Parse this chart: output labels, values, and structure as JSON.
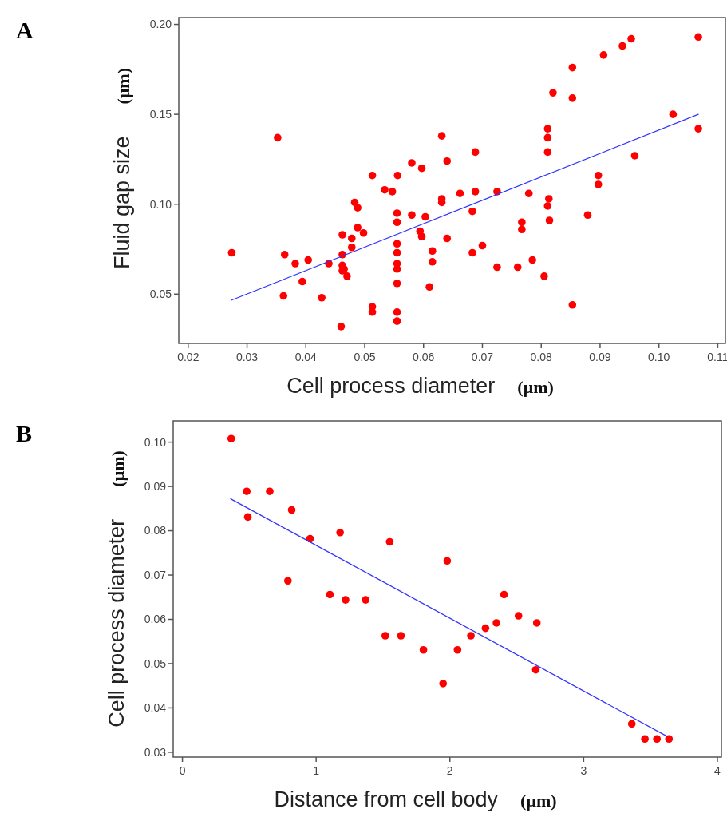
{
  "chart_data": [
    {
      "type": "scatter",
      "title": "A",
      "xlabel": "Cell process diameter (μm)",
      "ylabel": "Fluid gap size (μm)",
      "xlim": [
        0.0184,
        0.1113
      ],
      "ylim": [
        0.0226,
        0.2038
      ],
      "xticks": [
        {
          "value": 0.02,
          "label": "0.02"
        },
        {
          "value": 0.03,
          "label": "0.03"
        },
        {
          "value": 0.04,
          "label": "0.04"
        },
        {
          "value": 0.05,
          "label": "0.05"
        },
        {
          "value": 0.06,
          "label": "0.06"
        },
        {
          "value": 0.07,
          "label": "0.07"
        },
        {
          "value": 0.08,
          "label": "0.08"
        },
        {
          "value": 0.09,
          "label": "0.09"
        },
        {
          "value": 0.1,
          "label": "0.10"
        },
        {
          "value": 0.11,
          "label": "0.11"
        }
      ],
      "yticks": [
        {
          "value": 0.05,
          "label": "0.05"
        },
        {
          "value": 0.1,
          "label": "0.10"
        },
        {
          "value": 0.15,
          "label": "0.15"
        },
        {
          "value": 0.2,
          "label": "0.20"
        }
      ],
      "grid": false,
      "marker": "circle",
      "series": [
        {
          "color": "#ff0000",
          "x": [
            0.0274,
            0.0352,
            0.0364,
            0.0362,
            0.0382,
            0.0394,
            0.0404,
            0.0427,
            0.0439,
            0.0462,
            0.0462,
            0.0462,
            0.0465,
            0.0462,
            0.047,
            0.046,
            0.0478,
            0.0478,
            0.0483,
            0.0488,
            0.0488,
            0.0498,
            0.0513,
            0.0513,
            0.0513,
            0.0534,
            0.0547,
            0.0556,
            0.0555,
            0.0555,
            0.0555,
            0.0555,
            0.0555,
            0.0555,
            0.0555,
            0.0555,
            0.0555,
            0.058,
            0.058,
            0.0597,
            0.0594,
            0.0597,
            0.0603,
            0.0615,
            0.0615,
            0.061,
            0.0631,
            0.0631,
            0.0631,
            0.064,
            0.064,
            0.0662,
            0.0688,
            0.0688,
            0.0683,
            0.0683,
            0.07,
            0.0725,
            0.0725,
            0.076,
            0.0767,
            0.0767,
            0.0779,
            0.0785,
            0.0805,
            0.0811,
            0.0811,
            0.0811,
            0.0813,
            0.0811,
            0.0814,
            0.082,
            0.0853,
            0.0853,
            0.0853,
            0.0879,
            0.0897,
            0.0897,
            0.0906,
            0.0938,
            0.0953,
            0.0959,
            0.1024,
            0.1067,
            0.1067
          ],
          "values": [
            0.073,
            0.137,
            0.072,
            0.049,
            0.067,
            0.057,
            0.069,
            0.048,
            0.067,
            0.083,
            0.072,
            0.066,
            0.064,
            0.063,
            0.06,
            0.032,
            0.081,
            0.076,
            0.101,
            0.098,
            0.087,
            0.084,
            0.116,
            0.043,
            0.04,
            0.108,
            0.107,
            0.116,
            0.095,
            0.09,
            0.078,
            0.073,
            0.067,
            0.064,
            0.056,
            0.04,
            0.035,
            0.123,
            0.094,
            0.12,
            0.085,
            0.082,
            0.093,
            0.074,
            0.068,
            0.054,
            0.138,
            0.103,
            0.101,
            0.124,
            0.081,
            0.106,
            0.129,
            0.107,
            0.096,
            0.073,
            0.077,
            0.107,
            0.065,
            0.065,
            0.09,
            0.086,
            0.106,
            0.069,
            0.06,
            0.142,
            0.137,
            0.129,
            0.103,
            0.099,
            0.091,
            0.162,
            0.176,
            0.159,
            0.044,
            0.094,
            0.116,
            0.111,
            0.183,
            0.188,
            0.192,
            0.127,
            0.15,
            0.193,
            0.142
          ]
        },
        {
          "type": "line",
          "marker": "none",
          "color": "#3333ff",
          "x": [
            0.0274,
            0.1067
          ],
          "values": [
            0.0467,
            0.15
          ]
        }
      ]
    },
    {
      "type": "scatter",
      "title": "B",
      "xlabel": "Distance from cell body (μm)",
      "ylabel": "Cell process diameter (μm)",
      "xlim": [
        -0.069,
        4.03
      ],
      "ylim": [
        0.0289,
        0.1048
      ],
      "xticks": [
        0,
        1,
        2,
        3,
        4
      ],
      "yticks": [
        {
          "value": 0.03,
          "label": "0.03"
        },
        {
          "value": 0.04,
          "label": "0.04"
        },
        {
          "value": 0.05,
          "label": "0.05"
        },
        {
          "value": 0.06,
          "label": "0.06"
        },
        {
          "value": 0.07,
          "label": "0.07"
        },
        {
          "value": 0.08,
          "label": "0.08"
        },
        {
          "value": 0.09,
          "label": "0.09"
        },
        {
          "value": 0.1,
          "label": "0.10"
        }
      ],
      "grid": false,
      "marker": "circle",
      "series": [
        {
          "color": "#ff0000",
          "x": [
            0.365,
            0.481,
            0.489,
            0.653,
            0.817,
            0.789,
            0.955,
            1.103,
            1.179,
            1.22,
            1.37,
            1.55,
            1.517,
            1.634,
            1.802,
            1.949,
            1.98,
            2.057,
            2.157,
            2.266,
            2.348,
            2.405,
            2.513,
            2.65,
            2.642,
            3.36,
            3.458,
            3.548,
            3.638
          ],
          "values": [
            0.1008,
            0.0889,
            0.0831,
            0.0889,
            0.0847,
            0.0687,
            0.0782,
            0.0656,
            0.0796,
            0.0644,
            0.0644,
            0.0775,
            0.0563,
            0.0563,
            0.0531,
            0.0455,
            0.0732,
            0.0531,
            0.0563,
            0.058,
            0.0592,
            0.0656,
            0.0608,
            0.0592,
            0.0486,
            0.0364,
            0.033,
            0.033,
            0.033
          ]
        },
        {
          "type": "line",
          "marker": "none",
          "color": "#3333ff",
          "x": [
            0.361,
            3.622
          ],
          "values": [
            0.0872,
            0.0336
          ]
        }
      ]
    }
  ]
}
